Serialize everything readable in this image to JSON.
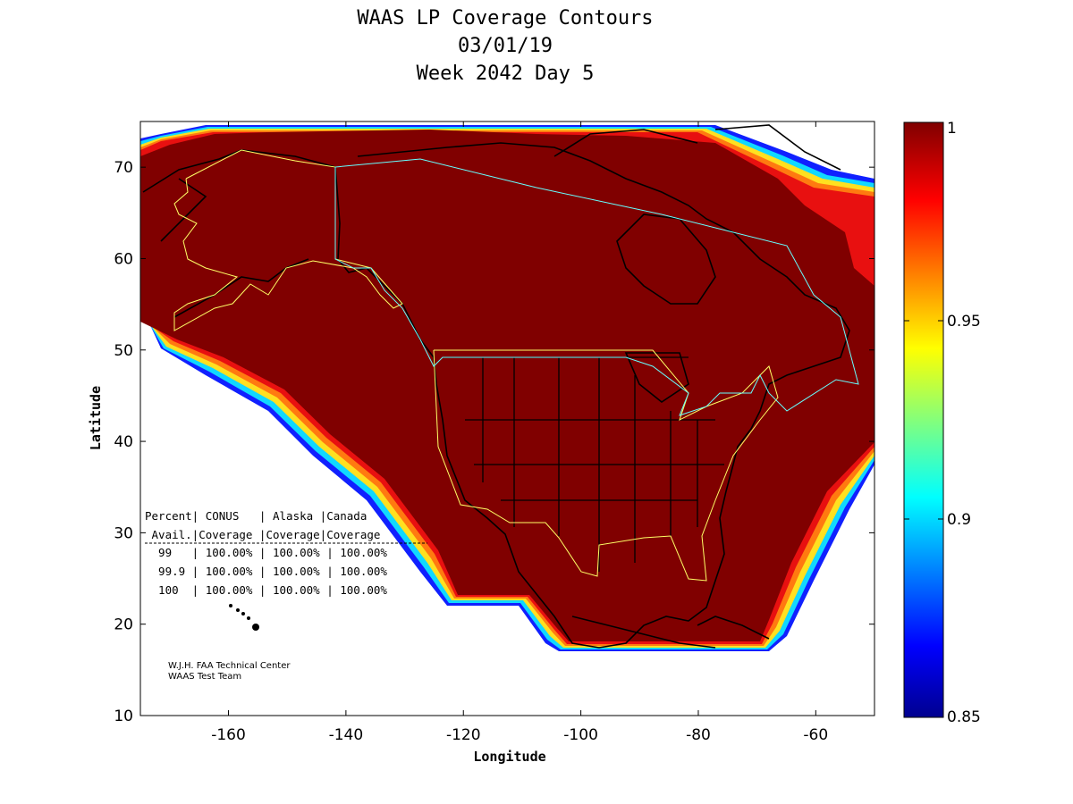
{
  "title": {
    "line1": "WAAS LP Coverage Contours",
    "line2": "03/01/19",
    "line3": "Week 2042 Day 5"
  },
  "axes": {
    "xlabel": "Longitude",
    "ylabel": "Latitude",
    "xlim": [
      -175,
      -50
    ],
    "ylim": [
      10,
      75
    ],
    "xticks": [
      -160,
      -140,
      -120,
      -100,
      -80,
      -60
    ],
    "yticks": [
      10,
      20,
      30,
      40,
      50,
      60,
      70
    ]
  },
  "colorbar": {
    "min": 0.85,
    "max": 1,
    "tick_values": [
      0.85,
      0.9,
      0.95,
      1
    ],
    "tick_labels": [
      "0.85",
      "0.9",
      "0.95",
      "1"
    ]
  },
  "table": {
    "header1": "Percent| CONUS   | Alaska |Canada",
    "header2": " Avail.|Coverage |Coverage|Coverage",
    "rows": [
      "  99   | 100.00% | 100.00% | 100.00%",
      "  99.9 | 100.00% | 100.00% | 100.00%",
      "  100  | 100.00% | 100.00% | 100.00%"
    ]
  },
  "credits": {
    "line1": "W.J.H. FAA Technical Center",
    "line2": "WAAS Test Team"
  },
  "colors": {
    "coverage_full": "#800000",
    "service_area_us": "#ffff66",
    "service_area_canada": "#66ffff"
  },
  "chart_data": {
    "type": "heatmap",
    "title": "WAAS LP Coverage Contours",
    "xlabel": "Longitude",
    "ylabel": "Latitude",
    "xlim": [
      -175,
      -50
    ],
    "ylim": [
      10,
      75
    ],
    "color_range": [
      0.85,
      1
    ],
    "coverage_percent": {
      "categories": [
        "CONUS",
        "Alaska",
        "Canada"
      ],
      "series": [
        {
          "name": "99",
          "values": [
            100.0,
            100.0,
            100.0
          ]
        },
        {
          "name": "99.9",
          "values": [
            100.0,
            100.0,
            100.0
          ]
        },
        {
          "name": "100",
          "values": [
            100.0,
            100.0,
            100.0
          ]
        }
      ]
    }
  }
}
